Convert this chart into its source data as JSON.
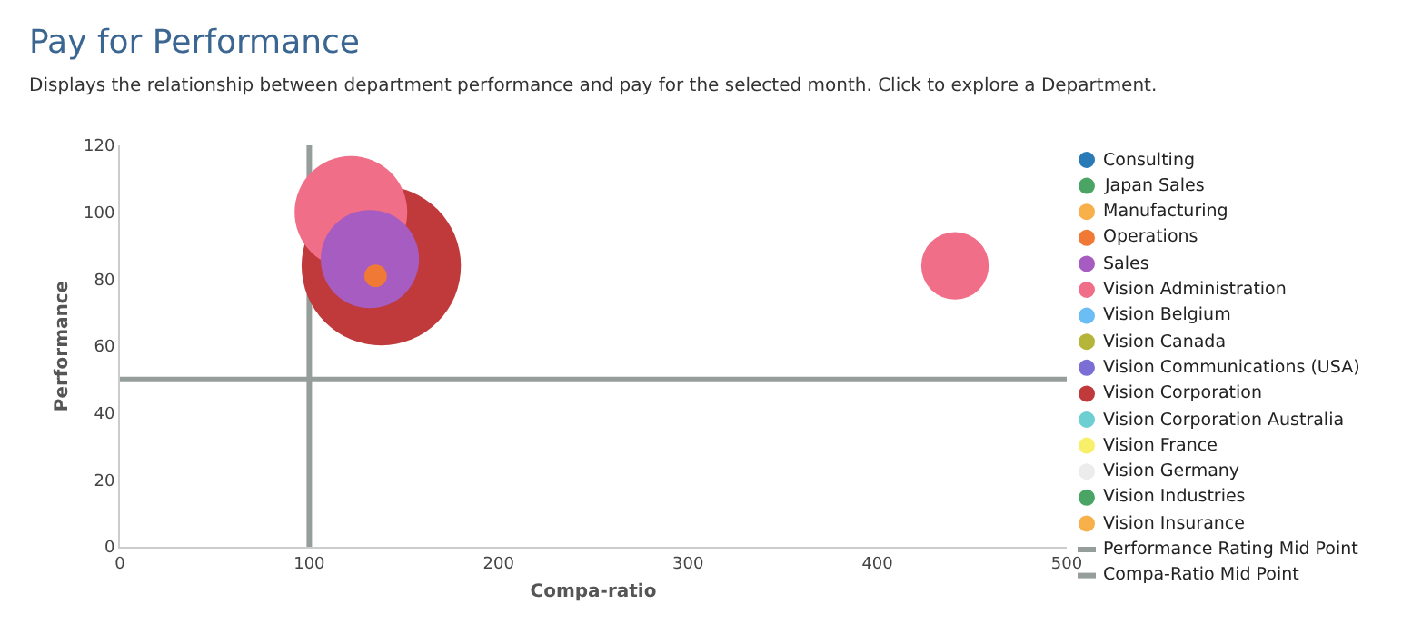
{
  "chart_data": {
    "type": "bubble",
    "title": "Pay for Performance",
    "subtitle": "Displays the relationship between department performance and pay for the selected month. Click to explore a Department.",
    "xlabel": "Compa-ratio",
    "ylabel": "Performance",
    "xlim": [
      0,
      500
    ],
    "xticks": [
      0,
      100,
      200,
      300,
      400,
      500
    ],
    "ylim": [
      0,
      120
    ],
    "yticks": [
      0,
      20,
      40,
      60,
      80,
      100,
      120
    ],
    "legend": "right",
    "series": [
      {
        "name": "Consulting",
        "color": "#2a7ab8"
      },
      {
        "name": "Japan Sales",
        "color": "#4aa564"
      },
      {
        "name": "Manufacturing",
        "color": "#f7b04a"
      },
      {
        "name": "Operations",
        "color": "#f07a35",
        "x": [
          135
        ],
        "values": [
          81
        ],
        "sizes": [
          0.02
        ]
      },
      {
        "name": "Sales",
        "color": "#a65cc0",
        "x": [
          132
        ],
        "values": [
          86
        ],
        "sizes": [
          0.38
        ]
      },
      {
        "name": "Vision Administration",
        "color": "#f06e87",
        "x": [
          122,
          441
        ],
        "values": [
          100,
          84
        ],
        "sizes": [
          0.5,
          0.18
        ]
      },
      {
        "name": "Vision Belgium",
        "color": "#6bbdf5"
      },
      {
        "name": "Vision Canada",
        "color": "#b5b53a"
      },
      {
        "name": "Vision Communications (USA)",
        "color": "#7b6fd6"
      },
      {
        "name": "Vision Corporation",
        "color": "#c0393b",
        "x": [
          138
        ],
        "values": [
          84
        ],
        "sizes": [
          1
        ]
      },
      {
        "name": "Vision Corporation Australia",
        "color": "#6dcfd1"
      },
      {
        "name": "Vision France",
        "color": "#f8ef6a"
      },
      {
        "name": "Vision Germany",
        "color": "#ececec"
      },
      {
        "name": "Vision Industries",
        "color": "#4aa564"
      },
      {
        "name": "Vision Insurance",
        "color": "#f7b04a"
      }
    ],
    "ref_lines": [
      {
        "axis": "y",
        "value": 50,
        "label": "Performance Rating Mid Point",
        "color": "#959e9a"
      },
      {
        "axis": "x",
        "value": 100,
        "label": "Compa-Ratio Mid Point",
        "color": "#959e9a"
      }
    ]
  }
}
